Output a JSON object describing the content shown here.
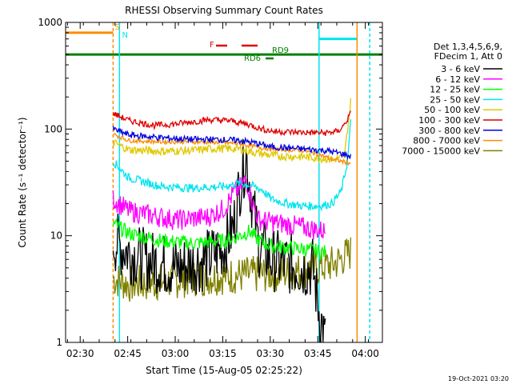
{
  "chart_data": {
    "type": "line",
    "title": "RHESSI Observing Summary Count Rates",
    "xlabel": "Start Time (15-Aug-05 02:25:22)",
    "ylabel": "Count Rate (s⁻¹ detector⁻¹)",
    "ylog": true,
    "ylim": [
      1,
      1000
    ],
    "xlim_minutes": [
      0,
      100
    ],
    "yticks": [
      "1",
      "10",
      "100",
      "1000"
    ],
    "xticks": [
      {
        "label": "02:30",
        "t": 4.6
      },
      {
        "label": "02:45",
        "t": 19.6
      },
      {
        "label": "03:00",
        "t": 34.6
      },
      {
        "label": "03:15",
        "t": 49.6
      },
      {
        "label": "03:30",
        "t": 64.6
      },
      {
        "label": "03:45",
        "t": 79.6
      },
      {
        "label": "04:00",
        "t": 94.6
      }
    ],
    "legend_header": [
      "Det 1,3,4,5,6,9,",
      "FDecim 1, Att 0"
    ],
    "series": [
      {
        "name": "3 - 6 keV",
        "color": "#000000"
      },
      {
        "name": "6 - 12 keV",
        "color": "#ff00ff"
      },
      {
        "name": "12 - 25 keV",
        "color": "#00ff00"
      },
      {
        "name": "25 - 50 keV",
        "color": "#00e5ee"
      },
      {
        "name": "50 - 100 keV",
        "color": "#e0c800"
      },
      {
        "name": "100 - 300 keV",
        "color": "#e00000"
      },
      {
        "name": "300 - 800 keV",
        "color": "#0000e0"
      },
      {
        "name": "800 - 7000 keV",
        "color": "#ff8c00"
      },
      {
        "name": "7000 - 15000 keV",
        "color": "#808000"
      }
    ],
    "levels": {
      "0": [
        [
          15,
          9
        ],
        [
          20,
          7
        ],
        [
          25,
          6
        ],
        [
          35,
          5
        ],
        [
          45,
          6
        ],
        [
          50,
          8
        ],
        [
          53,
          12
        ],
        [
          55,
          30
        ],
        [
          57,
          55
        ],
        [
          59,
          20
        ],
        [
          61,
          8
        ],
        [
          65,
          6
        ],
        [
          75,
          5
        ],
        [
          78,
          5
        ],
        [
          80,
          2
        ],
        [
          82,
          1
        ]
      ],
      "1": [
        [
          15,
          22
        ],
        [
          20,
          17
        ],
        [
          25,
          16
        ],
        [
          35,
          14
        ],
        [
          45,
          15
        ],
        [
          50,
          18
        ],
        [
          53,
          25
        ],
        [
          55,
          28
        ],
        [
          57,
          34
        ],
        [
          59,
          20
        ],
        [
          61,
          14
        ],
        [
          68,
          13
        ],
        [
          75,
          12
        ],
        [
          82,
          11
        ]
      ],
      "2": [
        [
          15,
          13
        ],
        [
          20,
          10.5
        ],
        [
          30,
          9
        ],
        [
          40,
          8.5
        ],
        [
          50,
          9
        ],
        [
          55,
          10
        ],
        [
          58,
          11
        ],
        [
          61,
          9
        ],
        [
          65,
          8
        ],
        [
          75,
          7.5
        ],
        [
          82,
          7
        ]
      ],
      "3": [
        [
          15,
          50
        ],
        [
          18,
          40
        ],
        [
          20,
          35
        ],
        [
          30,
          29
        ],
        [
          40,
          28
        ],
        [
          50,
          29
        ],
        [
          55,
          31
        ],
        [
          58,
          30
        ],
        [
          62,
          27
        ],
        [
          65,
          22
        ],
        [
          70,
          20
        ],
        [
          75,
          19
        ],
        [
          80,
          19
        ],
        [
          84,
          20
        ],
        [
          87,
          26
        ],
        [
          89,
          50
        ],
        [
          90,
          115
        ]
      ],
      "4": [
        [
          15,
          75
        ],
        [
          20,
          64
        ],
        [
          30,
          62
        ],
        [
          40,
          63
        ],
        [
          48,
          66
        ],
        [
          55,
          65
        ],
        [
          60,
          60
        ],
        [
          66,
          56
        ],
        [
          75,
          55
        ],
        [
          85,
          52
        ],
        [
          88,
          55
        ],
        [
          90,
          180
        ]
      ],
      "5": [
        [
          15,
          140
        ],
        [
          20,
          120
        ],
        [
          28,
          108
        ],
        [
          35,
          112
        ],
        [
          45,
          122
        ],
        [
          52,
          120
        ],
        [
          58,
          110
        ],
        [
          62,
          100
        ],
        [
          66,
          95
        ],
        [
          75,
          93
        ],
        [
          82,
          92
        ],
        [
          86,
          95
        ],
        [
          88,
          110
        ],
        [
          90,
          140
        ]
      ],
      "6": [
        [
          15,
          100
        ],
        [
          20,
          88
        ],
        [
          30,
          83
        ],
        [
          40,
          80
        ],
        [
          48,
          80
        ],
        [
          55,
          78
        ],
        [
          60,
          74
        ],
        [
          65,
          68
        ],
        [
          75,
          65
        ],
        [
          82,
          63
        ],
        [
          88,
          58
        ],
        [
          90,
          55
        ]
      ],
      "7": [
        [
          15,
          90
        ],
        [
          20,
          78
        ],
        [
          30,
          76
        ],
        [
          40,
          76
        ],
        [
          48,
          75
        ],
        [
          55,
          73
        ],
        [
          60,
          68
        ],
        [
          65,
          65
        ],
        [
          75,
          63
        ],
        [
          80,
          58
        ],
        [
          84,
          52
        ],
        [
          90,
          48
        ]
      ],
      "8": [
        [
          15,
          4
        ],
        [
          20,
          3.5
        ],
        [
          30,
          3.7
        ],
        [
          40,
          4
        ],
        [
          50,
          4.2
        ],
        [
          60,
          4.3
        ],
        [
          70,
          4.5
        ],
        [
          80,
          5
        ],
        [
          85,
          5.5
        ],
        [
          90,
          7
        ]
      ]
    },
    "annotations": [
      {
        "text": "S",
        "color": "#ff8c00"
      },
      {
        "text": "N",
        "color": "#00e5ee"
      },
      {
        "text": "F",
        "color": "#e00000"
      },
      {
        "text": "RD9",
        "color": "#008000"
      },
      {
        "text": "RD6",
        "color": "#008000"
      }
    ],
    "grid": false
  },
  "footer_timestamp": "19-Oct-2021 03:20"
}
